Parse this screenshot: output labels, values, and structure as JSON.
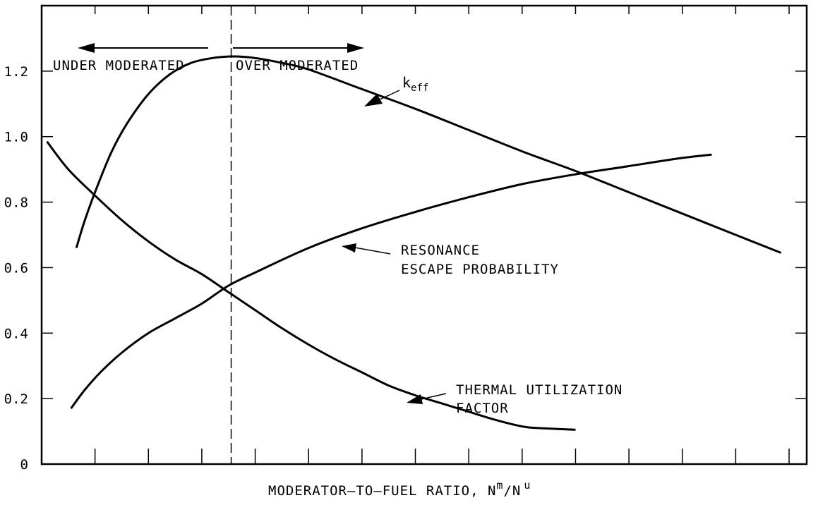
{
  "chart_data": {
    "type": "line",
    "title": "",
    "xlabel": "MODERATOR–TO–FUEL RATIO, N",
    "xlabel_sup1": "m",
    "xlabel_mid": "/N",
    "xlabel_sup2": "u",
    "ylabel": "",
    "ylim": [
      0,
      1.4
    ],
    "xlim": [
      0,
      14.33
    ],
    "x_ticks": [
      1,
      2,
      3,
      4,
      5,
      6,
      7,
      8,
      9,
      10,
      11,
      12,
      13,
      14
    ],
    "y_ticks": [
      0,
      0.2,
      0.4,
      0.6,
      0.8,
      1.0,
      1.2
    ],
    "y_tick_labels": [
      "0",
      "0.2",
      "0.4",
      "0.6",
      "0.8",
      "1.0",
      "1.2"
    ],
    "grid": false,
    "divider_x": 3.55,
    "regions": {
      "left_label": "UNDER MODERATED",
      "right_label": "OVER MODERATED"
    },
    "series": [
      {
        "name": "keff",
        "label_main": "k",
        "label_sub": "eff",
        "x": [
          0.65,
          0.8,
          1.0,
          1.3,
          1.6,
          2.0,
          2.4,
          2.8,
          3.2,
          3.6,
          4.0,
          4.5,
          5.0,
          6.0,
          7.0,
          8.0,
          9.0,
          10.0,
          11.0,
          12.0,
          13.0,
          13.85
        ],
        "values": [
          0.66,
          0.74,
          0.83,
          0.95,
          1.04,
          1.13,
          1.19,
          1.225,
          1.24,
          1.245,
          1.24,
          1.225,
          1.205,
          1.145,
          1.085,
          1.02,
          0.955,
          0.895,
          0.83,
          0.765,
          0.7,
          0.645
        ]
      },
      {
        "name": "RESONANCE ESCAPE PROBABILITY",
        "label_line1": "RESONANCE",
        "label_line2": "ESCAPE PROBABILITY",
        "x": [
          0.55,
          0.8,
          1.1,
          1.5,
          2.0,
          2.5,
          3.0,
          3.5,
          4.0,
          5.0,
          6.0,
          7.0,
          8.0,
          9.0,
          10.0,
          11.0,
          12.0,
          12.55
        ],
        "values": [
          0.17,
          0.225,
          0.28,
          0.34,
          0.4,
          0.445,
          0.49,
          0.545,
          0.585,
          0.66,
          0.72,
          0.77,
          0.815,
          0.855,
          0.885,
          0.91,
          0.935,
          0.945
        ]
      },
      {
        "name": "THERMAL UTILIZATION FACTOR",
        "label_line1": "THERMAL UTILIZATION",
        "label_line2": "FACTOR",
        "x": [
          0.1,
          0.5,
          1.0,
          1.5,
          2.0,
          2.5,
          3.0,
          3.5,
          4.0,
          4.5,
          5.0,
          5.5,
          6.0,
          6.5,
          7.0,
          7.5,
          8.0,
          8.5,
          9.0,
          9.3,
          10.0
        ],
        "values": [
          0.985,
          0.9,
          0.82,
          0.745,
          0.68,
          0.625,
          0.58,
          0.525,
          0.47,
          0.415,
          0.365,
          0.32,
          0.28,
          0.24,
          0.21,
          0.185,
          0.16,
          0.135,
          0.115,
          0.11,
          0.105
        ]
      }
    ]
  }
}
